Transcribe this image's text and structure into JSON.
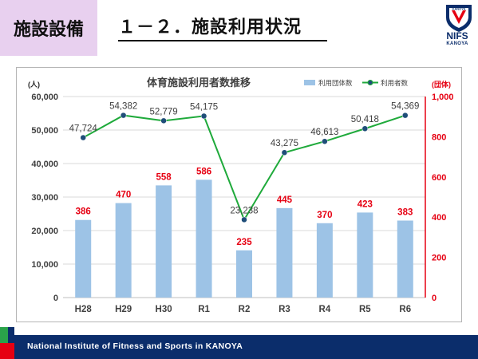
{
  "header": {
    "section_label": "施設設備",
    "slide_title": "１－２．施設利用状況"
  },
  "logo": {
    "emblem_text": "KANOYA",
    "name": "NIFS",
    "subname": "KANOYA"
  },
  "footer": {
    "text": "National Institute of Fitness and Sports in KANOYA"
  },
  "colors": {
    "bar": "#9dc3e6",
    "line": "#1faa3b",
    "marker": "#1f4e79",
    "footer": "#0b2d6b",
    "right_axis": "#e60012",
    "bar_label": "#e60012"
  },
  "chart_data": {
    "type": "bar+line",
    "title": "体育施設利用者数推移",
    "categories": [
      "H28",
      "H29",
      "H30",
      "R1",
      "R2",
      "R3",
      "R4",
      "R5",
      "R6"
    ],
    "series": [
      {
        "name": "利用団体数",
        "type": "bar",
        "axis": "right",
        "values": [
          386,
          470,
          558,
          586,
          235,
          445,
          370,
          423,
          383
        ]
      },
      {
        "name": "利用者数",
        "type": "line",
        "axis": "left",
        "values": [
          47724,
          54382,
          52779,
          54175,
          23238,
          43275,
          46613,
          50418,
          54369
        ]
      }
    ],
    "y_left": {
      "label": "(人)",
      "range": [
        0,
        60000
      ],
      "ticks": [
        "0",
        "10,000",
        "20,000",
        "30,000",
        "40,000",
        "50,000",
        "60,000"
      ]
    },
    "y_right": {
      "label": "(団体)",
      "range": [
        0,
        1000
      ],
      "ticks": [
        "0",
        "200",
        "400",
        "600",
        "800",
        "1,000"
      ]
    },
    "line_labels": [
      "47,724",
      "54,382",
      "52,779",
      "54,175",
      "23,238",
      "43,275",
      "46,613",
      "50,418",
      "54,369"
    ],
    "bar_labels": [
      "386",
      "470",
      "558",
      "586",
      "235",
      "445",
      "370",
      "423",
      "383"
    ],
    "grid": true,
    "legend_position": "top-right"
  }
}
